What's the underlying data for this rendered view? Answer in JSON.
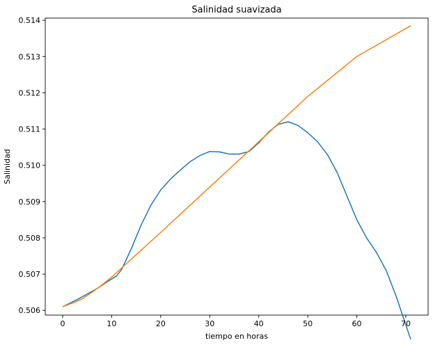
{
  "chart_data": {
    "type": "line",
    "title": "Salinidad suavizada",
    "xlabel": "tiempo en horas",
    "ylabel": "Salinidad",
    "xlim": [
      -3.55,
      74.55
    ],
    "ylim": [
      0.50587,
      0.51406
    ],
    "xticks": [
      0,
      10,
      20,
      30,
      40,
      50,
      60,
      70
    ],
    "yticks": [
      0.506,
      0.507,
      0.508,
      0.509,
      0.51,
      0.511,
      0.512,
      0.513,
      0.514
    ],
    "ytick_labels": [
      "0.506",
      "0.507",
      "0.508",
      "0.509",
      "0.510",
      "0.511",
      "0.512",
      "0.513",
      "0.514"
    ],
    "grid": false,
    "series": [
      {
        "color": "#1f77b4",
        "points": [
          [
            0,
            0.5061
          ],
          [
            3,
            0.5063
          ],
          [
            5,
            0.50645
          ],
          [
            7,
            0.5066
          ],
          [
            9,
            0.50678
          ],
          [
            11,
            0.50695
          ],
          [
            12,
            0.50712
          ],
          [
            14,
            0.5077
          ],
          [
            16,
            0.50835
          ],
          [
            18,
            0.5089
          ],
          [
            20,
            0.50932
          ],
          [
            22,
            0.50962
          ],
          [
            24,
            0.50987
          ],
          [
            26,
            0.5101
          ],
          [
            28,
            0.51027
          ],
          [
            30,
            0.51038
          ],
          [
            32,
            0.51037
          ],
          [
            34,
            0.51031
          ],
          [
            36,
            0.51031
          ],
          [
            38,
            0.51038
          ],
          [
            40,
            0.51062
          ],
          [
            42,
            0.51092
          ],
          [
            44,
            0.51113
          ],
          [
            46,
            0.5112
          ],
          [
            48,
            0.5111
          ],
          [
            50,
            0.5109
          ],
          [
            52,
            0.51065
          ],
          [
            54,
            0.5103
          ],
          [
            56,
            0.5098
          ],
          [
            58,
            0.50915
          ],
          [
            60,
            0.5085
          ],
          [
            62,
            0.508
          ],
          [
            64,
            0.5076
          ],
          [
            66,
            0.5071
          ],
          [
            68,
            0.5064
          ],
          [
            70,
            0.5056
          ],
          [
            71,
            0.5052
          ]
        ]
      },
      {
        "color": "#ff7f0e",
        "points": [
          [
            0,
            0.5061
          ],
          [
            2,
            0.5062
          ],
          [
            4,
            0.50632
          ],
          [
            6,
            0.5065
          ],
          [
            8,
            0.5067
          ],
          [
            10,
            0.50692
          ],
          [
            20,
            0.50815
          ],
          [
            30,
            0.5094
          ],
          [
            40,
            0.51065
          ],
          [
            50,
            0.5119
          ],
          [
            60,
            0.513
          ],
          [
            71,
            0.51385
          ]
        ]
      }
    ]
  }
}
